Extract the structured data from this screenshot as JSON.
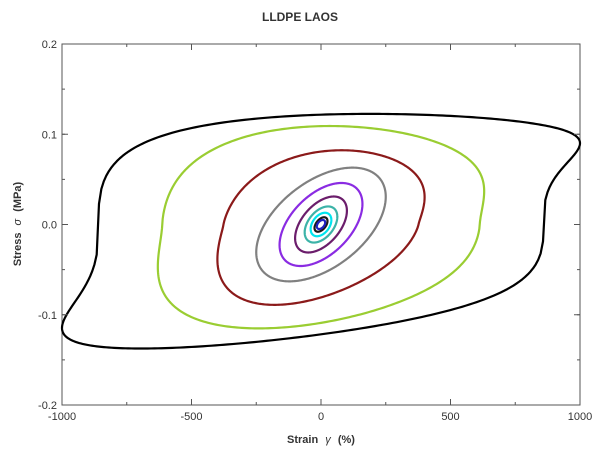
{
  "chart_data": {
    "type": "line",
    "title": "LLDPE LAOS",
    "xlabel": "Strain",
    "xlabel_symbol": "γ",
    "xlabel_unit": "(%)",
    "ylabel": "Stress",
    "ylabel_symbol": "σ",
    "ylabel_unit": "(MPa)",
    "xlim": [
      -1000,
      1000
    ],
    "ylim": [
      -0.2,
      0.2
    ],
    "xticks": [
      -1000,
      -500,
      0,
      500,
      1000
    ],
    "xtick_labels": [
      "-1000",
      "-500",
      "0",
      "500",
      "1000"
    ],
    "yticks": [
      -0.2,
      -0.1,
      0.0,
      0.1,
      0.2
    ],
    "ytick_labels": [
      "-0.2",
      "-0.1",
      "0.0",
      "0.1",
      "0.2"
    ],
    "grid": false,
    "series": [
      {
        "color": "#000000",
        "strain_amplitude": 1000,
        "stress_max": 0.128,
        "stress_at_zero_strain": 0.11,
        "shape": 6
      },
      {
        "color": "#9acd32",
        "strain_amplitude": 630,
        "stress_max": 0.111,
        "stress_at_zero_strain": 0.108,
        "shape": 3
      },
      {
        "color": "#8b1a1a",
        "strain_amplitude": 400,
        "stress_max": 0.085,
        "stress_at_zero_strain": 0.08,
        "shape": 2.4
      },
      {
        "color": "#808080",
        "strain_amplitude": 250,
        "stress_max": 0.063,
        "stress_at_zero_strain": 0.055,
        "shape": 2
      },
      {
        "color": "#8a2be2",
        "strain_amplitude": 160,
        "stress_max": 0.046,
        "stress_at_zero_strain": 0.04,
        "shape": 2
      },
      {
        "color": "#6b1d6b",
        "strain_amplitude": 100,
        "stress_max": 0.031,
        "stress_at_zero_strain": 0.027,
        "shape": 2
      },
      {
        "color": "#3cb3a8",
        "strain_amplitude": 63,
        "stress_max": 0.02,
        "stress_at_zero_strain": 0.018,
        "shape": 2
      },
      {
        "color": "#00e5ee",
        "strain_amplitude": 40,
        "stress_max": 0.013,
        "stress_at_zero_strain": 0.012,
        "shape": 2
      },
      {
        "color": "#1a1a1a",
        "strain_amplitude": 25,
        "stress_max": 0.008,
        "stress_at_zero_strain": 0.007,
        "shape": 2
      },
      {
        "color": "#2020c0",
        "strain_amplitude": 16,
        "stress_max": 0.005,
        "stress_at_zero_strain": 0.0045,
        "shape": 2
      }
    ]
  }
}
